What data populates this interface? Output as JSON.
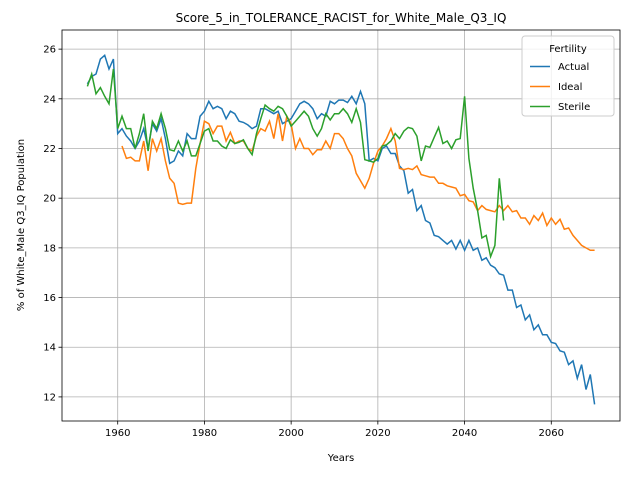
{
  "chart_data": {
    "type": "line",
    "title": "Score_5_in_TOLERANCE_RACIST_for_White_Male_Q3_IQ",
    "xlabel": "Years",
    "ylabel": "% of White_Male Q3_IQ Population",
    "legend_title": "Fertility",
    "legend_loc": "upper right",
    "grid": true,
    "xlim": [
      1947.15,
      2075.85
    ],
    "ylim": [
      11.03,
      26.77
    ],
    "xticks": [
      1960,
      1980,
      2000,
      2020,
      2040,
      2060
    ],
    "yticks": [
      12,
      14,
      16,
      18,
      20,
      22,
      24,
      26
    ],
    "x": [
      1953,
      1954,
      1955,
      1956,
      1957,
      1958,
      1959,
      1960,
      1961,
      1962,
      1963,
      1964,
      1965,
      1966,
      1967,
      1968,
      1969,
      1970,
      1971,
      1972,
      1973,
      1974,
      1975,
      1976,
      1977,
      1978,
      1979,
      1980,
      1981,
      1982,
      1983,
      1984,
      1985,
      1986,
      1987,
      1988,
      1989,
      1990,
      1991,
      1992,
      1993,
      1994,
      1995,
      1996,
      1997,
      1998,
      1999,
      2000,
      2001,
      2002,
      2003,
      2004,
      2005,
      2006,
      2007,
      2008,
      2009,
      2010,
      2011,
      2012,
      2013,
      2014,
      2015,
      2016,
      2017,
      2018,
      2019,
      2020,
      2021,
      2022,
      2023,
      2024,
      2025,
      2026,
      2027,
      2028,
      2029,
      2030,
      2031,
      2032,
      2033,
      2034,
      2035,
      2036,
      2037,
      2038,
      2039,
      2040,
      2041,
      2042,
      2043,
      2044,
      2045,
      2046,
      2047,
      2048,
      2049,
      2050,
      2051,
      2052,
      2053,
      2054,
      2055,
      2056,
      2057,
      2058,
      2059,
      2060,
      2061,
      2062,
      2063,
      2064,
      2065,
      2066,
      2067,
      2068,
      2069,
      2070
    ],
    "series": [
      {
        "name": "Actual",
        "color": "#1f77b4",
        "values": [
          24.6,
          24.9,
          25.0,
          25.6,
          25.75,
          25.2,
          25.6,
          22.6,
          22.8,
          22.5,
          22.3,
          22.0,
          22.3,
          22.8,
          22.0,
          23.0,
          22.7,
          23.2,
          22.4,
          21.4,
          21.5,
          21.9,
          21.7,
          22.6,
          22.4,
          22.4,
          23.3,
          23.5,
          23.9,
          23.6,
          23.7,
          23.6,
          23.2,
          23.5,
          23.4,
          23.1,
          23.05,
          22.95,
          22.8,
          22.9,
          23.6,
          23.6,
          23.5,
          23.4,
          23.5,
          23.0,
          23.1,
          23.2,
          23.5,
          23.8,
          23.9,
          23.8,
          23.6,
          23.2,
          23.4,
          23.3,
          23.9,
          23.8,
          23.95,
          23.95,
          23.85,
          24.1,
          23.8,
          24.3,
          23.8,
          21.5,
          21.6,
          21.5,
          22.0,
          22.1,
          21.8,
          21.8,
          21.3,
          21.1,
          20.2,
          20.35,
          19.5,
          19.7,
          19.1,
          19.0,
          18.5,
          18.45,
          18.3,
          18.15,
          18.3,
          17.95,
          18.3,
          17.9,
          18.3,
          17.9,
          18.0,
          17.5,
          17.6,
          17.3,
          17.2,
          16.95,
          16.9,
          16.3,
          16.3,
          15.6,
          15.7,
          15.1,
          15.3,
          14.7,
          14.9,
          14.5,
          14.5,
          14.2,
          14.15,
          13.85,
          13.8,
          13.3,
          13.45,
          12.75,
          13.3,
          12.3,
          12.9,
          11.7
        ]
      },
      {
        "name": "Ideal",
        "color": "#ff7f0e",
        "values": [
          null,
          null,
          null,
          null,
          null,
          null,
          null,
          null,
          22.1,
          21.6,
          21.65,
          21.5,
          21.5,
          22.3,
          21.1,
          22.4,
          21.9,
          22.4,
          21.5,
          20.8,
          20.6,
          19.8,
          19.75,
          19.8,
          19.8,
          21.2,
          22.2,
          23.1,
          23.0,
          22.6,
          22.9,
          22.9,
          22.3,
          22.65,
          22.2,
          22.3,
          22.3,
          22.0,
          21.9,
          22.5,
          22.8,
          22.7,
          23.1,
          22.4,
          23.4,
          22.3,
          23.3,
          23.0,
          22.0,
          22.4,
          22.0,
          22.0,
          21.75,
          21.95,
          21.95,
          22.3,
          22.0,
          22.6,
          22.6,
          22.4,
          22.0,
          21.7,
          21.0,
          20.7,
          20.4,
          20.8,
          21.4,
          21.9,
          22.1,
          22.4,
          22.8,
          22.3,
          21.2,
          21.15,
          21.2,
          21.15,
          21.3,
          20.95,
          20.9,
          20.85,
          20.85,
          20.6,
          20.6,
          20.5,
          20.45,
          20.4,
          20.1,
          20.15,
          19.9,
          19.85,
          19.5,
          19.7,
          19.55,
          19.5,
          19.45,
          19.7,
          19.5,
          19.7,
          19.45,
          19.5,
          19.2,
          19.2,
          18.95,
          19.3,
          19.1,
          19.4,
          18.9,
          19.2,
          18.95,
          19.15,
          18.75,
          18.8,
          18.5,
          18.3,
          18.1,
          18.0,
          17.9,
          17.9
        ]
      },
      {
        "name": "Sterile",
        "color": "#2ca02c",
        "values": [
          24.5,
          25.0,
          24.2,
          24.45,
          24.1,
          23.8,
          25.2,
          22.8,
          23.3,
          22.8,
          22.8,
          22.0,
          22.6,
          23.4,
          21.9,
          23.1,
          22.8,
          23.4,
          22.8,
          21.95,
          21.9,
          22.3,
          21.9,
          22.3,
          21.7,
          21.7,
          22.2,
          22.7,
          22.8,
          22.3,
          22.3,
          22.1,
          22.0,
          22.35,
          22.2,
          22.25,
          22.35,
          22.0,
          21.75,
          22.6,
          23.2,
          23.75,
          23.6,
          23.5,
          23.7,
          23.6,
          23.3,
          22.9,
          23.1,
          23.3,
          23.5,
          23.3,
          22.8,
          22.5,
          22.8,
          23.4,
          23.15,
          23.4,
          23.4,
          23.6,
          23.4,
          23.05,
          23.6,
          23.05,
          21.55,
          21.5,
          21.45,
          21.6,
          22.1,
          22.15,
          22.3,
          22.6,
          22.4,
          22.7,
          22.85,
          22.8,
          22.5,
          21.5,
          22.1,
          22.05,
          22.45,
          22.85,
          22.2,
          22.3,
          22.0,
          22.35,
          22.4,
          24.1,
          21.6,
          20.4,
          19.5,
          18.4,
          18.5,
          17.65,
          18.1,
          20.8,
          19.1,
          null,
          null,
          null,
          null,
          null,
          null,
          null,
          null,
          null,
          null,
          null,
          null,
          null,
          null,
          null,
          null,
          null,
          null,
          null,
          null,
          null
        ]
      }
    ]
  }
}
